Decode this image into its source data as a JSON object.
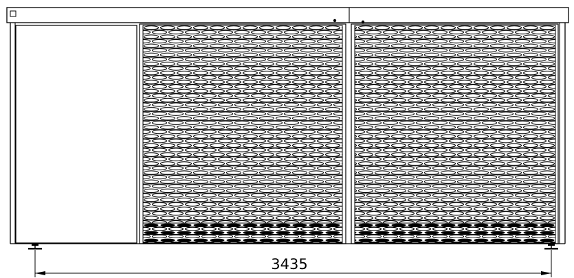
{
  "drawing": {
    "dimension_label": "3435",
    "line_color": "#000000",
    "background_color": "#ffffff",
    "panels": [
      {
        "name": "solid-door-panel",
        "fill": "plain"
      },
      {
        "name": "mesh-door-panel-left",
        "fill": "woven-mesh"
      },
      {
        "name": "mesh-door-panel-right",
        "fill": "woven-mesh"
      }
    ],
    "icons": [
      "corner-square-icon",
      "leveling-foot-icon",
      "door-handle-icon",
      "dimension-arrow-icon"
    ]
  }
}
